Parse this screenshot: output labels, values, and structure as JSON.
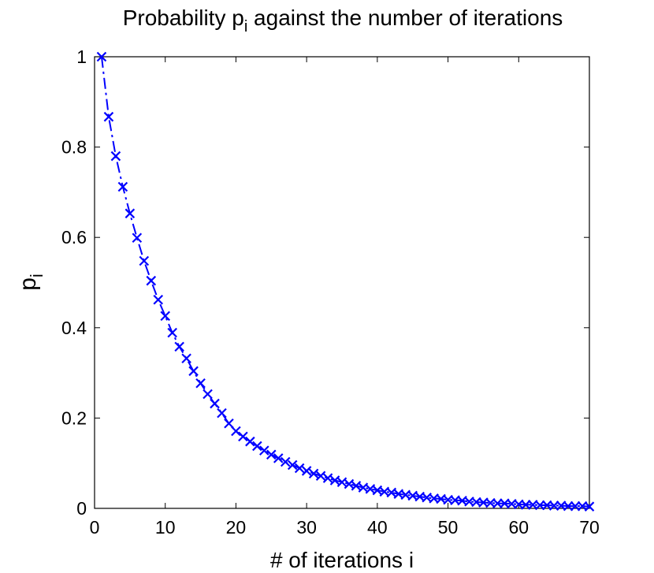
{
  "chart_data": {
    "type": "line",
    "title": [
      "Probability p",
      "i",
      " against the number of iterations"
    ],
    "xlabel": "# of iterations i",
    "ylabel": [
      "p",
      "i"
    ],
    "xlim": [
      0,
      70
    ],
    "xticks": [
      0,
      10,
      20,
      30,
      40,
      50,
      60,
      70
    ],
    "ylim": [
      0,
      1
    ],
    "yticks": [
      0,
      0.2,
      0.4,
      0.6,
      0.8,
      1
    ],
    "grid": false,
    "series": [
      {
        "color": "#0000ff",
        "marker": "x",
        "line_style": "dashdot",
        "x": [
          1,
          2,
          3,
          4,
          5,
          6,
          7,
          8,
          9,
          10,
          11,
          12,
          13,
          14,
          15,
          16,
          17,
          18,
          19,
          20,
          21,
          22,
          23,
          24,
          25,
          26,
          27,
          28,
          29,
          30,
          31,
          32,
          33,
          34,
          35,
          36,
          37,
          38,
          39,
          40,
          41,
          42,
          43,
          44,
          45,
          46,
          47,
          48,
          49,
          50,
          51,
          52,
          53,
          54,
          55,
          56,
          57,
          58,
          59,
          60,
          61,
          62,
          63,
          64,
          65,
          66,
          67,
          68,
          69,
          70
        ],
        "values": [
          1,
          0.867,
          0.78,
          0.712,
          0.653,
          0.599,
          0.548,
          0.504,
          0.462,
          0.426,
          0.389,
          0.358,
          0.332,
          0.304,
          0.277,
          0.253,
          0.232,
          0.211,
          0.188,
          0.171,
          0.159,
          0.148,
          0.138,
          0.128,
          0.119,
          0.111,
          0.103,
          0.096,
          0.089,
          0.083,
          0.077,
          0.072,
          0.067,
          0.062,
          0.058,
          0.054,
          0.05,
          0.046,
          0.043,
          0.04,
          0.037,
          0.035,
          0.032,
          0.03,
          0.028,
          0.026,
          0.024,
          0.022,
          0.021,
          0.019,
          0.018,
          0.017,
          0.015,
          0.014,
          0.013,
          0.012,
          0.011,
          0.011,
          0.01,
          0.009,
          0.008,
          0.008,
          0.007,
          0.007,
          0.006,
          0.006,
          0.005,
          0.005,
          0.005,
          0.004
        ]
      }
    ]
  }
}
